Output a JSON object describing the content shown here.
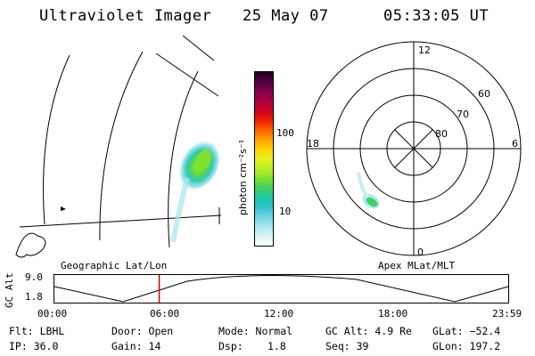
{
  "header": {
    "instrument": "Ultraviolet Imager",
    "date": "25 May 07",
    "time": "05:33:05 UT"
  },
  "geographic_map": {
    "label": "Geographic Lat/Lon"
  },
  "colorbar": {
    "unit_label": "photon cm⁻²s⁻¹",
    "ticks": [
      "100",
      "10"
    ],
    "scale": "log",
    "colors": [
      "#ffffff",
      "#d8f3f6",
      "#a8e6ee",
      "#6fd3e0",
      "#2fc0d0",
      "#20c8a0",
      "#40d060",
      "#80e030",
      "#b8f020",
      "#e8f020",
      "#ffd400",
      "#ffa000",
      "#ff6000",
      "#f02000",
      "#d00020",
      "#b00040",
      "#800050",
      "#500040",
      "#200020"
    ]
  },
  "polar_plot": {
    "label": "Apex MLat/MLT",
    "mlt_labels": {
      "top": "12",
      "left": "18",
      "right": "6",
      "bottom": "0"
    },
    "lat_labels": [
      "60",
      "70",
      "80"
    ]
  },
  "altitude_panel": {
    "axis_label": "GC Alt",
    "y_ticks": [
      "9.0",
      "1.8"
    ],
    "x_ticks": [
      "00:00",
      "06:00",
      "12:00",
      "18:00",
      "23:59"
    ],
    "current_time_fraction": 0.231,
    "marker_color": "#d40000"
  },
  "info": {
    "filter": "Flt: LBHL",
    "ip": "IP: 36.0",
    "door": "Door: Open",
    "gain": "Gain: 14",
    "mode": "Mode: Normal",
    "dsp_label": "Dsp:",
    "dsp_value": "1.8",
    "gc_alt": "GC Alt: 4.9 Re",
    "seq": "Seq: 39",
    "glat": "GLat: −52.4",
    "glon": "GLon: 197.2"
  }
}
